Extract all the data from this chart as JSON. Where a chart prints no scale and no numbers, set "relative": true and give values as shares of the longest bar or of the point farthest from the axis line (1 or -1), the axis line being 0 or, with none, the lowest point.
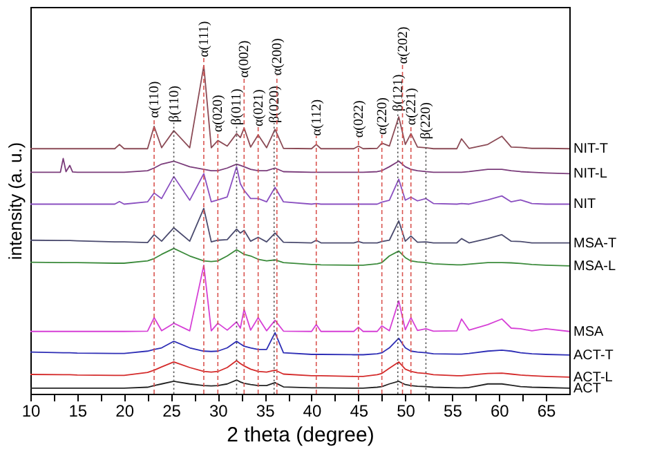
{
  "chart_data": {
    "type": "line",
    "relative": true,
    "xlabel": "2 theta (degree)",
    "ylabel": "intensity (a. u.)",
    "xlim": [
      10,
      67.5
    ],
    "xticks": [
      10,
      {
        "value": 12.5,
        "label": null
      },
      15,
      {
        "value": 17.5,
        "label": null
      },
      20,
      {
        "value": 22.5,
        "label": null
      },
      25,
      {
        "value": 27.5,
        "label": null
      },
      30,
      {
        "value": 32.5,
        "label": null
      },
      35,
      {
        "value": 37.5,
        "label": null
      },
      40,
      {
        "value": 42.5,
        "label": null
      },
      45,
      {
        "value": 47.5,
        "label": null
      },
      50,
      {
        "value": 52.5,
        "label": null
      },
      55,
      {
        "value": 57.5,
        "label": null
      },
      60,
      {
        "value": 62.5,
        "label": null
      },
      65
    ],
    "x": [
      10,
      13.5,
      14.2,
      15,
      19,
      19.5,
      20,
      22.5,
      23.2,
      24,
      25.3,
      27,
      28.5,
      29.3,
      30,
      31,
      32,
      32.4,
      32.8,
      33.5,
      34.3,
      35.2,
      36.1,
      37,
      40,
      40.5,
      41,
      44.5,
      45,
      45.5,
      47,
      47.5,
      48.3,
      49.3,
      50,
      50.6,
      51.3,
      52.2,
      53,
      55.5,
      56,
      56.8,
      58.8,
      60.3,
      61.3,
      62.3,
      63.5,
      65,
      67.5
    ],
    "series": [
      {
        "name": "NIT-T",
        "color": "#8b4a55",
        "values": [
          0.747,
          0.747,
          0.747,
          0.747,
          0.747,
          0.76,
          0.747,
          0.747,
          0.815,
          0.75,
          0.802,
          0.75,
          1.0,
          0.75,
          0.772,
          0.755,
          0.793,
          0.781,
          0.81,
          0.752,
          0.789,
          0.75,
          0.806,
          0.748,
          0.747,
          0.76,
          0.747,
          0.747,
          0.755,
          0.747,
          0.748,
          0.764,
          0.755,
          0.844,
          0.76,
          0.793,
          0.752,
          0.75,
          0.747,
          0.747,
          0.777,
          0.748,
          0.76,
          0.785,
          0.752,
          0.751,
          0.748,
          0.748,
          0.747
        ]
      },
      {
        "name": "NIT-L",
        "color": "#7a3b7a",
        "x": [
          10,
          13.2,
          13.5,
          13.8,
          14.2,
          14.5,
          15,
          19,
          19.5,
          20,
          22.5,
          23.2,
          24,
          25.3,
          27,
          28.5,
          29.3,
          30,
          31,
          32,
          32.4,
          32.8,
          33.5,
          34.3,
          35.2,
          36.1,
          37,
          40,
          40.5,
          41,
          44.5,
          45,
          45.5,
          47,
          47.5,
          48.3,
          49.3,
          50,
          50.6,
          51.3,
          52.2,
          53,
          55.5,
          56,
          56.8,
          58.8,
          60.3,
          61.3,
          62.3,
          63.5,
          65,
          67.5
        ],
        "values": [
          0.675,
          0.675,
          0.717,
          0.677,
          0.696,
          0.676,
          0.675,
          0.675,
          0.675,
          0.675,
          0.68,
          0.688,
          0.7,
          0.709,
          0.692,
          0.684,
          0.68,
          0.68,
          0.688,
          0.7,
          0.696,
          0.692,
          0.684,
          0.68,
          0.68,
          0.688,
          0.677,
          0.675,
          0.675,
          0.675,
          0.675,
          0.675,
          0.675,
          0.677,
          0.68,
          0.692,
          0.709,
          0.692,
          0.684,
          0.68,
          0.677,
          0.675,
          0.675,
          0.675,
          0.677,
          0.684,
          0.684,
          0.68,
          0.677,
          0.675,
          0.673,
          0.671
        ]
      },
      {
        "name": "NIT",
        "color": "#8a4fc0",
        "values": [
          0.578,
          0.578,
          0.578,
          0.578,
          0.578,
          0.586,
          0.578,
          0.585,
          0.612,
          0.595,
          0.662,
          0.59,
          0.671,
          0.585,
          0.591,
          0.6,
          0.692,
          0.64,
          0.62,
          0.595,
          0.595,
          0.585,
          0.629,
          0.585,
          0.578,
          0.58,
          0.578,
          0.578,
          0.578,
          0.578,
          0.578,
          0.584,
          0.59,
          0.654,
          0.59,
          0.599,
          0.588,
          0.595,
          0.58,
          0.578,
          0.58,
          0.578,
          0.591,
          0.603,
          0.585,
          0.591,
          0.58,
          0.578,
          0.578
        ]
      },
      {
        "name": "MSA-T",
        "color": "#4a4a6e",
        "values": [
          0.468,
          0.467,
          0.467,
          0.466,
          0.463,
          0.463,
          0.463,
          0.461,
          0.485,
          0.465,
          0.506,
          0.465,
          0.565,
          0.463,
          0.468,
          0.47,
          0.502,
          0.49,
          0.498,
          0.465,
          0.477,
          0.463,
          0.49,
          0.462,
          0.46,
          0.468,
          0.46,
          0.46,
          0.464,
          0.46,
          0.46,
          0.464,
          0.468,
          0.527,
          0.465,
          0.481,
          0.462,
          0.463,
          0.46,
          0.46,
          0.473,
          0.46,
          0.473,
          0.485,
          0.465,
          0.464,
          0.46,
          0.46,
          0.46
        ]
      },
      {
        "name": "MSA-L",
        "color": "#3a8a3a",
        "values": [
          0.401,
          0.4,
          0.4,
          0.4,
          0.398,
          0.398,
          0.398,
          0.405,
          0.412,
          0.425,
          0.443,
          0.42,
          0.405,
          0.403,
          0.405,
          0.42,
          0.439,
          0.432,
          0.425,
          0.42,
          0.41,
          0.405,
          0.408,
          0.4,
          0.394,
          0.394,
          0.393,
          0.392,
          0.392,
          0.392,
          0.396,
          0.4,
          0.42,
          0.435,
          0.415,
          0.405,
          0.402,
          0.4,
          0.396,
          0.393,
          0.393,
          0.395,
          0.4,
          0.4,
          0.399,
          0.397,
          0.394,
          0.392,
          0.39
        ]
      },
      {
        "name": "MSA",
        "color": "#d63fd6",
        "values": [
          0.19,
          0.19,
          0.19,
          0.19,
          0.19,
          0.19,
          0.19,
          0.191,
          0.232,
          0.192,
          0.215,
          0.192,
          0.392,
          0.192,
          0.215,
          0.194,
          0.219,
          0.2,
          0.257,
          0.194,
          0.232,
          0.192,
          0.224,
          0.191,
          0.19,
          0.211,
          0.19,
          0.19,
          0.203,
          0.19,
          0.19,
          0.207,
          0.192,
          0.283,
          0.195,
          0.232,
          0.193,
          0.198,
          0.191,
          0.192,
          0.228,
          0.194,
          0.211,
          0.228,
          0.2,
          0.198,
          0.192,
          0.198,
          0.19
        ]
      },
      {
        "name": "ACT-T",
        "color": "#2d2db5",
        "values": [
          0.127,
          0.125,
          0.125,
          0.124,
          0.123,
          0.123,
          0.123,
          0.13,
          0.135,
          0.14,
          0.16,
          0.14,
          0.13,
          0.129,
          0.13,
          0.14,
          0.16,
          0.152,
          0.145,
          0.14,
          0.135,
          0.135,
          0.186,
          0.125,
          0.12,
          0.12,
          0.12,
          0.119,
          0.119,
          0.119,
          0.122,
          0.125,
          0.14,
          0.169,
          0.14,
          0.13,
          0.127,
          0.125,
          0.122,
          0.121,
          0.121,
          0.123,
          0.13,
          0.133,
          0.13,
          0.125,
          0.122,
          0.12,
          0.118
        ]
      },
      {
        "name": "ACT-L",
        "color": "#d42a2a",
        "values": [
          0.059,
          0.058,
          0.058,
          0.057,
          0.056,
          0.056,
          0.056,
          0.065,
          0.072,
          0.082,
          0.097,
          0.08,
          0.068,
          0.066,
          0.068,
          0.08,
          0.101,
          0.092,
          0.085,
          0.075,
          0.068,
          0.066,
          0.072,
          0.06,
          0.055,
          0.055,
          0.055,
          0.053,
          0.053,
          0.053,
          0.058,
          0.062,
          0.078,
          0.097,
          0.075,
          0.068,
          0.064,
          0.062,
          0.058,
          0.055,
          0.055,
          0.057,
          0.062,
          0.063,
          0.06,
          0.057,
          0.055,
          0.053,
          0.051
        ]
      },
      {
        "name": "ACT",
        "color": "#222222",
        "values": [
          0.017,
          0.017,
          0.017,
          0.017,
          0.017,
          0.017,
          0.017,
          0.02,
          0.025,
          0.03,
          0.038,
          0.03,
          0.025,
          0.024,
          0.025,
          0.03,
          0.042,
          0.036,
          0.032,
          0.028,
          0.025,
          0.025,
          0.034,
          0.021,
          0.018,
          0.018,
          0.018,
          0.017,
          0.017,
          0.017,
          0.02,
          0.022,
          0.03,
          0.038,
          0.028,
          0.025,
          0.023,
          0.022,
          0.02,
          0.018,
          0.018,
          0.019,
          0.03,
          0.03,
          0.026,
          0.022,
          0.02,
          0.019,
          0.017
        ]
      }
    ],
    "ref_lines": [
      {
        "axis": "x",
        "value": 23.2,
        "label": "α(110)",
        "color": "#d9534f",
        "line_style": "dashed"
      },
      {
        "axis": "x",
        "value": 25.3,
        "label": "β(110)",
        "color": "#555555",
        "line_style": "dotted"
      },
      {
        "axis": "x",
        "value": 28.5,
        "label": "α(111)",
        "color": "#d9534f",
        "line_style": "dashed"
      },
      {
        "axis": "x",
        "value": 30.0,
        "label": "α(020)",
        "color": "#d9534f",
        "line_style": "dashed"
      },
      {
        "axis": "x",
        "value": 32.0,
        "label": "β(011)",
        "color": "#555555",
        "line_style": "dotted"
      },
      {
        "axis": "x",
        "value": 32.8,
        "label": "α(002)",
        "color": "#d9534f",
        "line_style": "dashed"
      },
      {
        "axis": "x",
        "value": 34.3,
        "label": "α(021)",
        "color": "#d9534f",
        "line_style": "dashed"
      },
      {
        "axis": "x",
        "value": 36.0,
        "label": "β(020)",
        "color": "#555555",
        "line_style": "dotted"
      },
      {
        "axis": "x",
        "value": 36.3,
        "label": "α(200)",
        "color": "#d9534f",
        "line_style": "dashed"
      },
      {
        "axis": "x",
        "value": 40.5,
        "label": "α(112)",
        "color": "#d9534f",
        "line_style": "dashed"
      },
      {
        "axis": "x",
        "value": 45.0,
        "label": "α(022)",
        "color": "#d9534f",
        "line_style": "dashed"
      },
      {
        "axis": "x",
        "value": 47.5,
        "label": "α(220)",
        "color": "#d9534f",
        "line_style": "dashed"
      },
      {
        "axis": "x",
        "value": 49.2,
        "label": "β(121)",
        "color": "#555555",
        "line_style": "dotted"
      },
      {
        "axis": "x",
        "value": 49.7,
        "label": "α(202)",
        "color": "#d9534f",
        "line_style": "dashed"
      },
      {
        "axis": "x",
        "value": 50.6,
        "label": "α(221)",
        "color": "#d9534f",
        "line_style": "dashed"
      },
      {
        "axis": "x",
        "value": 52.2,
        "label": "β(220)",
        "color": "#555555",
        "line_style": "dotted"
      }
    ]
  }
}
